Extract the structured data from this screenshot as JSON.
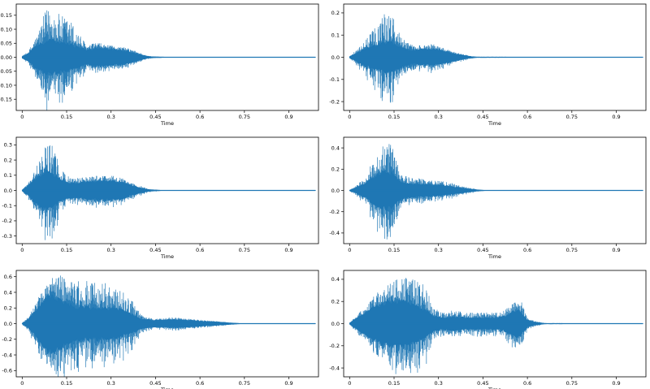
{
  "color": "#1f77b4",
  "chart_data": [
    {
      "type": "line",
      "subtype": "waveform",
      "xlabel": "Time",
      "ylabel": "",
      "xlim": [
        -0.02,
        1.0
      ],
      "ylim": [
        -0.19,
        0.19
      ],
      "xticks": [
        0,
        0.15,
        0.3,
        0.45,
        0.6,
        0.75,
        0.9
      ],
      "xtick_labels": [
        "0",
        "0.15",
        "0.3",
        "0.45",
        "0.6",
        "0.75",
        "0.9"
      ],
      "yticks": [
        -0.15,
        -0.1,
        -0.05,
        0.0,
        0.05,
        0.1,
        0.15
      ],
      "ytick_labels": [
        "-0.15",
        "-0.10",
        "-0.05",
        "0.00",
        "0.05",
        "0.10",
        "0.15"
      ],
      "duration": 0.99,
      "envelope": {
        "t": [
          0,
          0.02,
          0.05,
          0.08,
          0.1,
          0.13,
          0.16,
          0.19,
          0.22,
          0.25,
          0.28,
          0.31,
          0.35,
          0.39,
          0.42,
          0.44,
          0.48,
          0.99
        ],
        "peak": [
          0.005,
          0.02,
          0.08,
          0.17,
          0.18,
          0.15,
          0.14,
          0.09,
          0.04,
          0.055,
          0.045,
          0.04,
          0.035,
          0.02,
          0.006,
          0.003,
          0.0008,
          0.0003
        ],
        "body": [
          0.003,
          0.012,
          0.04,
          0.055,
          0.06,
          0.05,
          0.045,
          0.035,
          0.025,
          0.032,
          0.03,
          0.028,
          0.022,
          0.012,
          0.004,
          0.002,
          0.0006,
          0.0002
        ]
      }
    },
    {
      "type": "line",
      "subtype": "waveform",
      "xlabel": "Time",
      "ylabel": "",
      "xlim": [
        -0.02,
        1.0
      ],
      "ylim": [
        -0.24,
        0.24
      ],
      "xticks": [
        0,
        0.15,
        0.3,
        0.45,
        0.6,
        0.75,
        0.9
      ],
      "xtick_labels": [
        "0",
        "0.15",
        "0.3",
        "0.45",
        "0.6",
        "0.75",
        "0.9"
      ],
      "yticks": [
        -0.2,
        -0.1,
        0.0,
        0.1,
        0.2
      ],
      "ytick_labels": [
        "-0.2",
        "-0.1",
        "0.0",
        "0.1",
        "0.2"
      ],
      "duration": 0.99,
      "envelope": {
        "t": [
          0,
          0.02,
          0.05,
          0.08,
          0.11,
          0.14,
          0.16,
          0.19,
          0.22,
          0.25,
          0.28,
          0.31,
          0.34,
          0.37,
          0.4,
          0.43,
          0.99
        ],
        "peak": [
          0.005,
          0.03,
          0.07,
          0.13,
          0.19,
          0.22,
          0.19,
          0.07,
          0.05,
          0.06,
          0.06,
          0.045,
          0.03,
          0.02,
          0.008,
          0.002,
          0.0004
        ],
        "body": [
          0.003,
          0.015,
          0.035,
          0.05,
          0.06,
          0.065,
          0.055,
          0.035,
          0.03,
          0.035,
          0.035,
          0.03,
          0.02,
          0.012,
          0.005,
          0.001,
          0.0003
        ]
      }
    },
    {
      "type": "line",
      "subtype": "waveform",
      "xlabel": "Time",
      "ylabel": "",
      "xlim": [
        -0.02,
        1.0
      ],
      "ylim": [
        -0.35,
        0.35
      ],
      "xticks": [
        0,
        0.15,
        0.3,
        0.45,
        0.6,
        0.75,
        0.9
      ],
      "xtick_labels": [
        "0",
        "0.15",
        "0.3",
        "0.45",
        "0.6",
        "0.75",
        "0.9"
      ],
      "yticks": [
        -0.3,
        -0.2,
        -0.1,
        0.0,
        0.1,
        0.2,
        0.3
      ],
      "ytick_labels": [
        "-0.3",
        "-0.2",
        "-0.1",
        "0.0",
        "0.1",
        "0.2",
        "0.3"
      ],
      "duration": 0.99,
      "envelope": {
        "t": [
          0,
          0.02,
          0.04,
          0.06,
          0.08,
          0.1,
          0.12,
          0.15,
          0.18,
          0.22,
          0.26,
          0.3,
          0.34,
          0.37,
          0.4,
          0.43,
          0.47,
          0.99
        ],
        "peak": [
          0.005,
          0.05,
          0.12,
          0.22,
          0.32,
          0.3,
          0.2,
          0.1,
          0.08,
          0.09,
          0.1,
          0.1,
          0.08,
          0.05,
          0.03,
          0.01,
          0.002,
          0.0005
        ],
        "body": [
          0.003,
          0.03,
          0.07,
          0.1,
          0.12,
          0.11,
          0.08,
          0.05,
          0.045,
          0.055,
          0.06,
          0.06,
          0.05,
          0.03,
          0.015,
          0.005,
          0.001,
          0.0003
        ]
      }
    },
    {
      "type": "line",
      "subtype": "waveform",
      "xlabel": "Time",
      "ylabel": "",
      "xlim": [
        -0.02,
        1.0
      ],
      "ylim": [
        -0.5,
        0.5
      ],
      "xticks": [
        0,
        0.15,
        0.3,
        0.45,
        0.6,
        0.75,
        0.9
      ],
      "xtick_labels": [
        "0",
        "0.15",
        "0.3",
        "0.45",
        "0.6",
        "0.75",
        "0.9"
      ],
      "yticks": [
        -0.4,
        -0.2,
        0.0,
        0.2,
        0.4
      ],
      "ytick_labels": [
        "-0.4",
        "-0.2",
        "0.0",
        "0.2",
        "0.4"
      ],
      "duration": 0.99,
      "envelope": {
        "t": [
          0,
          0.02,
          0.05,
          0.08,
          0.1,
          0.12,
          0.14,
          0.16,
          0.18,
          0.21,
          0.25,
          0.29,
          0.33,
          0.37,
          0.4,
          0.43,
          0.46,
          0.99
        ],
        "peak": [
          0.005,
          0.04,
          0.12,
          0.28,
          0.38,
          0.45,
          0.45,
          0.3,
          0.15,
          0.12,
          0.11,
          0.1,
          0.08,
          0.05,
          0.03,
          0.01,
          0.002,
          0.0005
        ],
        "body": [
          0.003,
          0.02,
          0.06,
          0.12,
          0.16,
          0.18,
          0.16,
          0.11,
          0.07,
          0.06,
          0.055,
          0.05,
          0.04,
          0.025,
          0.015,
          0.006,
          0.001,
          0.0003
        ]
      }
    },
    {
      "type": "line",
      "subtype": "waveform",
      "xlabel": "Time",
      "ylabel": "",
      "xlim": [
        -0.02,
        1.0
      ],
      "ylim": [
        -0.68,
        0.68
      ],
      "xticks": [
        0,
        0.15,
        0.3,
        0.45,
        0.6,
        0.75,
        0.9
      ],
      "xtick_labels": [
        "0",
        "0.15",
        "0.3",
        "0.45",
        "0.6",
        "0.75",
        "0.9"
      ],
      "yticks": [
        -0.6,
        -0.4,
        -0.2,
        0.0,
        0.2,
        0.4,
        0.6
      ],
      "ytick_labels": [
        "-0.6",
        "-0.4",
        "-0.2",
        "0.0",
        "0.2",
        "0.4",
        "0.6"
      ],
      "duration": 0.99,
      "envelope": {
        "t": [
          0,
          0.02,
          0.05,
          0.08,
          0.1,
          0.13,
          0.17,
          0.21,
          0.25,
          0.29,
          0.33,
          0.37,
          0.4,
          0.42,
          0.45,
          0.5,
          0.55,
          0.6,
          0.66,
          0.7,
          0.74,
          0.99
        ],
        "peak": [
          0.01,
          0.08,
          0.3,
          0.5,
          0.6,
          0.62,
          0.58,
          0.56,
          0.55,
          0.52,
          0.45,
          0.3,
          0.12,
          0.08,
          0.06,
          0.08,
          0.07,
          0.05,
          0.03,
          0.015,
          0.002,
          0.0005
        ],
        "body": [
          0.005,
          0.05,
          0.18,
          0.32,
          0.36,
          0.3,
          0.22,
          0.2,
          0.2,
          0.19,
          0.17,
          0.12,
          0.06,
          0.05,
          0.04,
          0.05,
          0.045,
          0.03,
          0.02,
          0.01,
          0.001,
          0.0003
        ]
      }
    },
    {
      "type": "line",
      "subtype": "waveform",
      "xlabel": "Time",
      "ylabel": "",
      "xlim": [
        -0.02,
        1.0
      ],
      "ylim": [
        -0.48,
        0.48
      ],
      "xticks": [
        0,
        0.15,
        0.3,
        0.45,
        0.6,
        0.75,
        0.9
      ],
      "xtick_labels": [
        "0",
        "0.15",
        "0.3",
        "0.45",
        "0.6",
        "0.75",
        "0.9"
      ],
      "yticks": [
        -0.4,
        -0.2,
        0.0,
        0.2,
        0.4
      ],
      "ytick_labels": [
        "-0.4",
        "-0.2",
        "0.0",
        "0.2",
        "0.4"
      ],
      "duration": 0.99,
      "envelope": {
        "t": [
          0,
          0.02,
          0.05,
          0.08,
          0.11,
          0.14,
          0.17,
          0.2,
          0.23,
          0.26,
          0.28,
          0.31,
          0.35,
          0.4,
          0.45,
          0.5,
          0.53,
          0.55,
          0.57,
          0.58,
          0.6,
          0.62,
          0.66,
          0.99
        ],
        "peak": [
          0.01,
          0.06,
          0.15,
          0.25,
          0.33,
          0.38,
          0.42,
          0.42,
          0.4,
          0.32,
          0.15,
          0.1,
          0.12,
          0.1,
          0.1,
          0.1,
          0.14,
          0.2,
          0.25,
          0.2,
          0.05,
          0.03,
          0.004,
          0.0005
        ],
        "body": [
          0.005,
          0.04,
          0.09,
          0.14,
          0.18,
          0.2,
          0.2,
          0.18,
          0.15,
          0.11,
          0.07,
          0.05,
          0.06,
          0.05,
          0.05,
          0.05,
          0.07,
          0.1,
          0.12,
          0.09,
          0.03,
          0.015,
          0.002,
          0.0003
        ]
      }
    }
  ]
}
